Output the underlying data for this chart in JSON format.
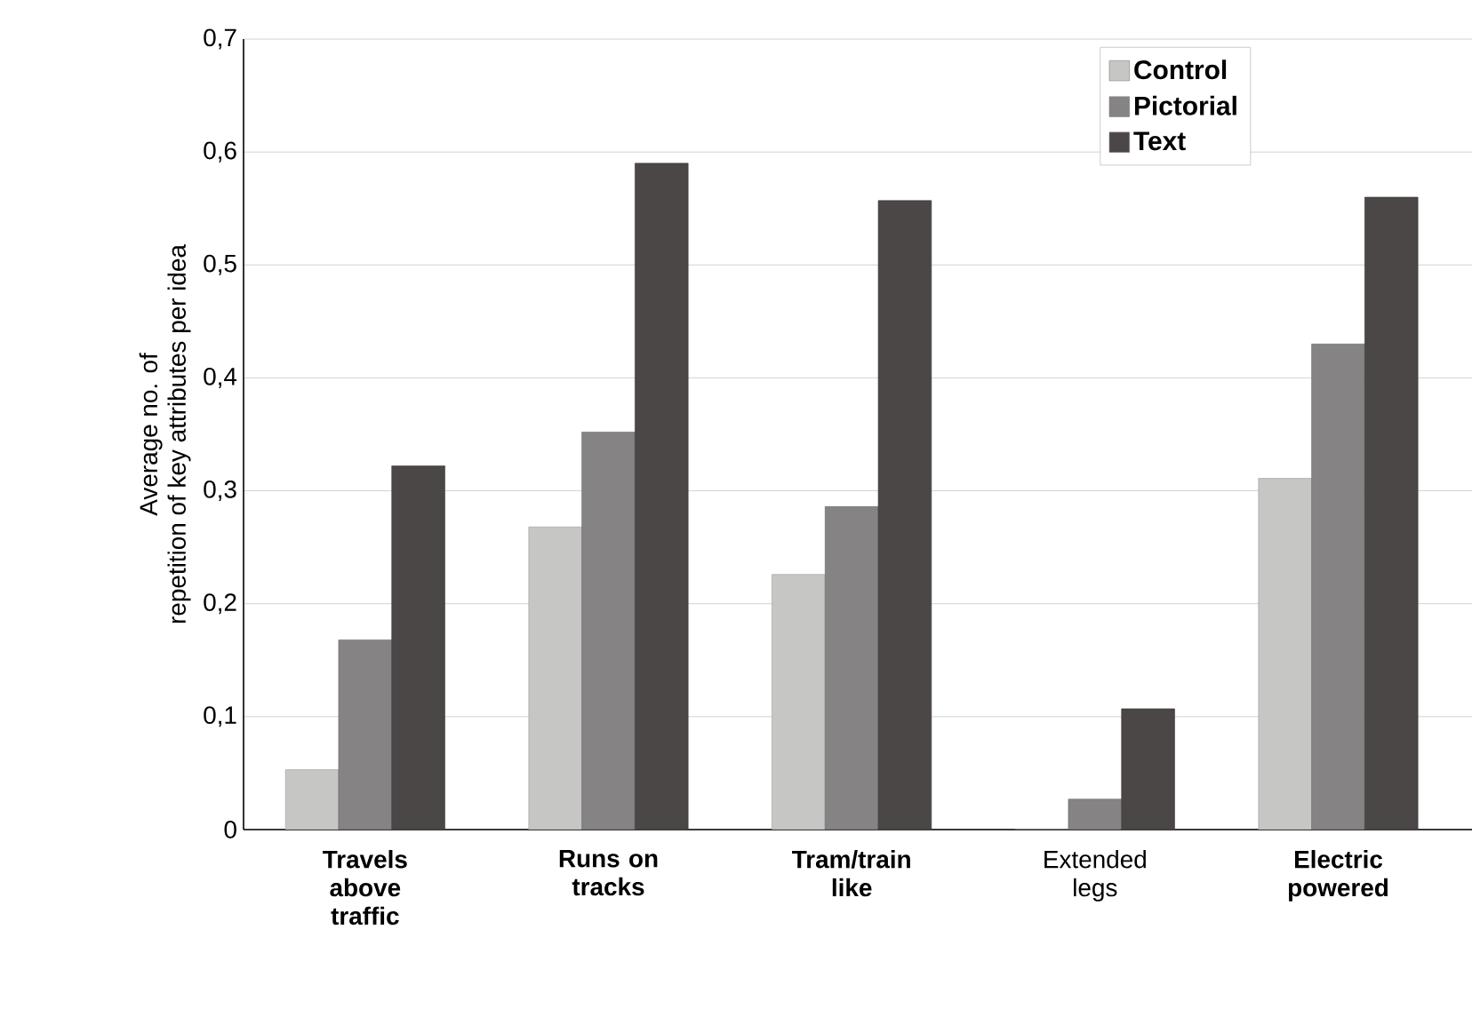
{
  "chart_data": {
    "type": "bar",
    "ylabel": "Average no. of\nrepetition of key attributes per idea",
    "categories": [
      "**Travels above traffic**",
      "**Runs on tracks**",
      "**Tram/train like**",
      "Extended legs",
      "**Electric powered**"
    ],
    "series": [
      {
        "name": "Control",
        "color": "#c6c6c4",
        "values": [
          0.053,
          0.268,
          0.226,
          0,
          0.311
        ]
      },
      {
        "name": "Pictorial",
        "color": "#858383",
        "values": [
          0.168,
          0.352,
          0.286,
          0.027,
          0.43
        ]
      },
      {
        "name": "Text",
        "color": "#4b4747",
        "values": [
          0.322,
          0.59,
          0.557,
          0.107,
          0.56
        ]
      }
    ],
    "ylim": [
      0,
      0.7
    ],
    "yticks": [
      {
        "value": 0,
        "label": "0"
      },
      {
        "value": 0.1,
        "label": "0,1"
      },
      {
        "value": 0.2,
        "label": "0,2"
      },
      {
        "value": 0.3,
        "label": "0,3"
      },
      {
        "value": 0.4,
        "label": "0,4"
      },
      {
        "value": 0.5,
        "label": "0,5"
      },
      {
        "value": 0.6,
        "label": "0,6"
      },
      {
        "value": 0.7,
        "label": "0,7"
      }
    ],
    "grid": "y",
    "legend": "top right"
  }
}
